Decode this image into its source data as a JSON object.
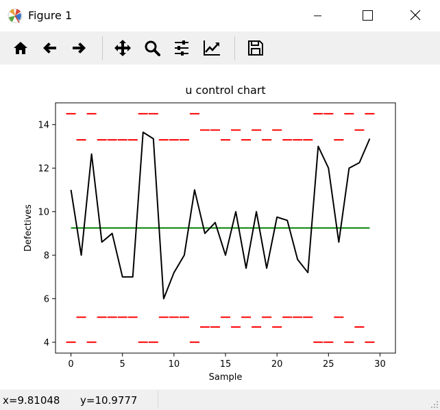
{
  "window": {
    "title": "Figure 1",
    "minimize_icon": "minimize-icon",
    "maximize_icon": "maximize-icon",
    "close_icon": "close-icon"
  },
  "toolbar": {
    "buttons": [
      {
        "name": "home-button",
        "icon": "home-icon"
      },
      {
        "name": "back-button",
        "icon": "arrow-left-icon"
      },
      {
        "name": "forward-button",
        "icon": "arrow-right-icon"
      },
      {
        "name": "pan-button",
        "icon": "move-icon"
      },
      {
        "name": "zoom-button",
        "icon": "magnifier-icon"
      },
      {
        "name": "configure-subplots-button",
        "icon": "sliders-icon"
      },
      {
        "name": "edit-axis-button",
        "icon": "line-chart-icon"
      },
      {
        "name": "save-button",
        "icon": "floppy-disk-icon"
      }
    ]
  },
  "status": {
    "x_text": "x=9.81048",
    "y_text": "y=10.9777"
  },
  "chart_data": {
    "type": "line",
    "title": "u control chart",
    "xlabel": "Sample",
    "ylabel": "Defectives",
    "xlim": [
      -1.5,
      31.5
    ],
    "ylim": [
      3.5,
      15.0
    ],
    "xticks": [
      0,
      5,
      10,
      15,
      20,
      25,
      30
    ],
    "yticks": [
      4,
      6,
      8,
      10,
      12,
      14
    ],
    "grid": false,
    "colors": {
      "data": "#000000",
      "center": "#008000",
      "limits": "#ff0000"
    },
    "series": [
      {
        "x": [
          0,
          1,
          2,
          3,
          4,
          5,
          6,
          7,
          8,
          9,
          10,
          11,
          12,
          13,
          14,
          15,
          16,
          17,
          18,
          19,
          20,
          21,
          22,
          23,
          24,
          25,
          26,
          27,
          28,
          29
        ],
        "values": [
          11.0,
          8.0,
          12.65,
          8.6,
          9.0,
          7.0,
          7.0,
          13.65,
          13.35,
          6.0,
          7.2,
          8.0,
          11.0,
          9.0,
          9.5,
          8.0,
          10.0,
          7.4,
          10.0,
          7.4,
          9.75,
          9.6,
          7.8,
          7.2,
          13.0,
          12.0,
          8.6,
          12.0,
          12.25,
          13.35
        ]
      }
    ],
    "center_line": 9.25,
    "upper_limits": [
      14.5,
      13.3,
      14.5,
      13.3,
      13.3,
      13.3,
      13.3,
      14.5,
      14.5,
      13.3,
      13.3,
      13.3,
      14.5,
      13.75,
      13.75,
      13.3,
      13.75,
      13.3,
      13.75,
      13.3,
      13.75,
      13.3,
      13.3,
      13.3,
      14.5,
      14.5,
      13.3,
      14.5,
      13.75,
      14.5
    ],
    "lower_limits": [
      4.0,
      5.15,
      4.0,
      5.15,
      5.15,
      5.15,
      5.15,
      4.0,
      4.0,
      5.15,
      5.15,
      5.15,
      4.0,
      4.7,
      4.7,
      5.15,
      4.7,
      5.15,
      4.7,
      5.15,
      4.7,
      5.15,
      5.15,
      5.15,
      4.0,
      4.0,
      5.15,
      4.0,
      4.7,
      4.0
    ]
  }
}
